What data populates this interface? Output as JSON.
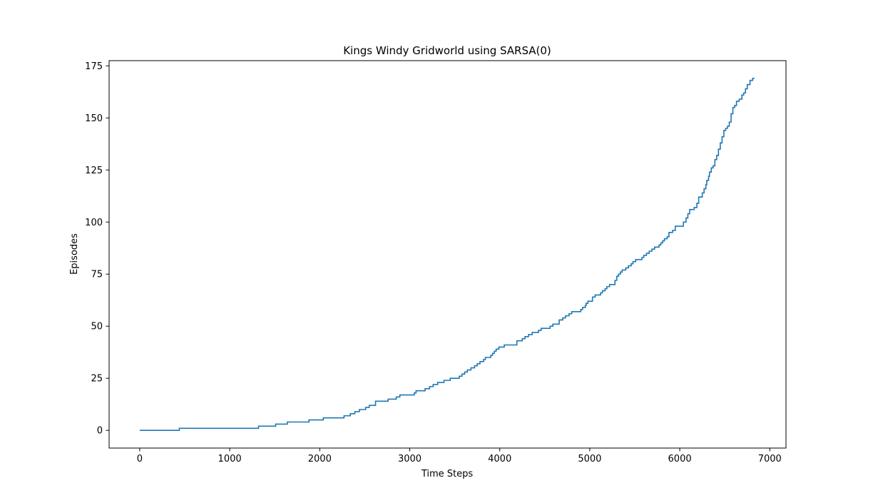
{
  "chart_data": {
    "type": "line",
    "title": "Kings Windy Gridworld using SARSA(0)",
    "xlabel": "Time Steps",
    "ylabel": "Episodes",
    "xlim": [
      -340,
      7180
    ],
    "ylim": [
      -8.5,
      177.5
    ],
    "xticks": [
      0,
      1000,
      2000,
      3000,
      4000,
      5000,
      6000,
      7000
    ],
    "yticks": [
      0,
      25,
      50,
      75,
      100,
      125,
      150,
      175
    ],
    "grid": false,
    "legend": "none",
    "series": [
      {
        "color": "#1f77b4",
        "step": true,
        "points": [
          [
            0,
            0
          ],
          [
            440,
            1
          ],
          [
            1320,
            2
          ],
          [
            1510,
            3
          ],
          [
            1640,
            4
          ],
          [
            1880,
            5
          ],
          [
            2040,
            6
          ],
          [
            2270,
            7
          ],
          [
            2340,
            8
          ],
          [
            2390,
            9
          ],
          [
            2440,
            10
          ],
          [
            2510,
            11
          ],
          [
            2550,
            12
          ],
          [
            2620,
            14
          ],
          [
            2760,
            15
          ],
          [
            2850,
            16
          ],
          [
            2890,
            17
          ],
          [
            3050,
            18
          ],
          [
            3070,
            19
          ],
          [
            3170,
            20
          ],
          [
            3220,
            21
          ],
          [
            3260,
            22
          ],
          [
            3310,
            23
          ],
          [
            3380,
            24
          ],
          [
            3450,
            25
          ],
          [
            3550,
            26
          ],
          [
            3580,
            27
          ],
          [
            3610,
            28
          ],
          [
            3640,
            29
          ],
          [
            3680,
            30
          ],
          [
            3720,
            31
          ],
          [
            3750,
            32
          ],
          [
            3780,
            33
          ],
          [
            3820,
            34
          ],
          [
            3840,
            35
          ],
          [
            3900,
            36
          ],
          [
            3920,
            37
          ],
          [
            3940,
            38
          ],
          [
            3960,
            39
          ],
          [
            3990,
            40
          ],
          [
            4050,
            41
          ],
          [
            4190,
            43
          ],
          [
            4250,
            44
          ],
          [
            4280,
            45
          ],
          [
            4320,
            46
          ],
          [
            4360,
            47
          ],
          [
            4430,
            48
          ],
          [
            4460,
            49
          ],
          [
            4560,
            50
          ],
          [
            4590,
            51
          ],
          [
            4660,
            53
          ],
          [
            4700,
            54
          ],
          [
            4730,
            55
          ],
          [
            4770,
            56
          ],
          [
            4800,
            57
          ],
          [
            4900,
            58
          ],
          [
            4920,
            59
          ],
          [
            4950,
            60
          ],
          [
            4960,
            61
          ],
          [
            4980,
            62
          ],
          [
            5030,
            64
          ],
          [
            5060,
            65
          ],
          [
            5120,
            66
          ],
          [
            5140,
            67
          ],
          [
            5170,
            68
          ],
          [
            5190,
            69
          ],
          [
            5220,
            70
          ],
          [
            5280,
            72
          ],
          [
            5300,
            74
          ],
          [
            5320,
            75
          ],
          [
            5340,
            76
          ],
          [
            5360,
            77
          ],
          [
            5400,
            78
          ],
          [
            5430,
            79
          ],
          [
            5460,
            80
          ],
          [
            5480,
            81
          ],
          [
            5510,
            82
          ],
          [
            5580,
            83
          ],
          [
            5600,
            84
          ],
          [
            5630,
            85
          ],
          [
            5660,
            86
          ],
          [
            5690,
            87
          ],
          [
            5720,
            88
          ],
          [
            5770,
            89
          ],
          [
            5790,
            90
          ],
          [
            5810,
            91
          ],
          [
            5830,
            92
          ],
          [
            5860,
            93
          ],
          [
            5880,
            95
          ],
          [
            5920,
            96
          ],
          [
            5950,
            98
          ],
          [
            6040,
            100
          ],
          [
            6070,
            102
          ],
          [
            6090,
            104
          ],
          [
            6110,
            106
          ],
          [
            6160,
            107
          ],
          [
            6190,
            109
          ],
          [
            6210,
            112
          ],
          [
            6250,
            114
          ],
          [
            6270,
            116
          ],
          [
            6290,
            118
          ],
          [
            6300,
            120
          ],
          [
            6320,
            122
          ],
          [
            6330,
            124
          ],
          [
            6350,
            126
          ],
          [
            6370,
            127
          ],
          [
            6390,
            130
          ],
          [
            6410,
            132
          ],
          [
            6430,
            135
          ],
          [
            6450,
            138
          ],
          [
            6470,
            141
          ],
          [
            6490,
            144
          ],
          [
            6510,
            145
          ],
          [
            6530,
            146
          ],
          [
            6550,
            148
          ],
          [
            6570,
            152
          ],
          [
            6590,
            155
          ],
          [
            6610,
            156
          ],
          [
            6630,
            158
          ],
          [
            6660,
            159
          ],
          [
            6690,
            161
          ],
          [
            6710,
            162
          ],
          [
            6730,
            164
          ],
          [
            6750,
            166
          ],
          [
            6780,
            168
          ],
          [
            6810,
            169
          ],
          [
            6830,
            169
          ]
        ]
      }
    ]
  }
}
